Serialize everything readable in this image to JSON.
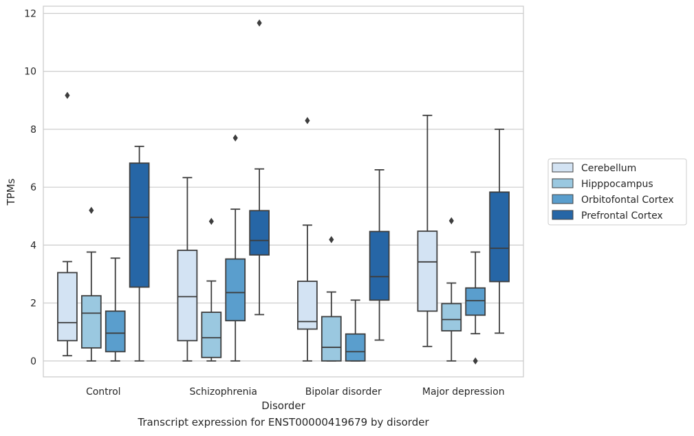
{
  "caption": "Transcript expression for ENST00000419679 by disorder",
  "chart_data": {
    "type": "box",
    "xlabel": "Disorder",
    "ylabel": "TPMs",
    "ylim": [
      -0.55,
      12.25
    ],
    "yticks": [
      0,
      2,
      4,
      6,
      8,
      10,
      12
    ],
    "grid": true,
    "legend_position": "right",
    "categories": [
      "Control",
      "Schizophrenia",
      "Bipolar disorder",
      "Major depression"
    ],
    "series": [
      {
        "name": "Cerebellum",
        "color": "#d3e3f3",
        "boxes": [
          {
            "whislo": 0.18,
            "q1": 0.7,
            "med": 1.32,
            "q3": 3.05,
            "whishi": 3.43,
            "fliers": [
              9.17
            ]
          },
          {
            "whislo": 0.0,
            "q1": 0.7,
            "med": 2.22,
            "q3": 3.82,
            "whishi": 6.33,
            "fliers": []
          },
          {
            "whislo": 0.0,
            "q1": 1.1,
            "med": 1.36,
            "q3": 2.75,
            "whishi": 4.69,
            "fliers": [
              8.3
            ]
          },
          {
            "whislo": 0.5,
            "q1": 1.72,
            "med": 3.42,
            "q3": 4.48,
            "whishi": 8.48,
            "fliers": []
          }
        ]
      },
      {
        "name": "Hipppocampus",
        "color": "#9ac8e0",
        "boxes": [
          {
            "whislo": 0.0,
            "q1": 0.45,
            "med": 1.65,
            "q3": 2.25,
            "whishi": 3.76,
            "fliers": [
              5.2
            ]
          },
          {
            "whislo": 0.0,
            "q1": 0.12,
            "med": 0.8,
            "q3": 1.68,
            "whishi": 2.76,
            "fliers": [
              4.82
            ]
          },
          {
            "whislo": 0.0,
            "q1": 0.0,
            "med": 0.47,
            "q3": 1.53,
            "whishi": 2.38,
            "fliers": [
              4.19
            ]
          },
          {
            "whislo": 0.0,
            "q1": 1.04,
            "med": 1.43,
            "q3": 1.98,
            "whishi": 2.69,
            "fliers": [
              4.84
            ]
          }
        ]
      },
      {
        "name": "Orbitofontal Cortex",
        "color": "#5a9ecd",
        "boxes": [
          {
            "whislo": 0.0,
            "q1": 0.32,
            "med": 0.96,
            "q3": 1.72,
            "whishi": 3.55,
            "fliers": []
          },
          {
            "whislo": 0.0,
            "q1": 1.39,
            "med": 2.36,
            "q3": 3.52,
            "whishi": 5.24,
            "fliers": [
              7.7
            ]
          },
          {
            "whislo": 0.0,
            "q1": 0.0,
            "med": 0.32,
            "q3": 0.93,
            "whishi": 2.1,
            "fliers": []
          },
          {
            "whislo": 0.94,
            "q1": 1.58,
            "med": 2.08,
            "q3": 2.52,
            "whishi": 3.76,
            "fliers": [
              0.0
            ]
          }
        ]
      },
      {
        "name": "Prefrontal Cortex",
        "color": "#2666a6",
        "boxes": [
          {
            "whislo": 0.0,
            "q1": 2.55,
            "med": 4.96,
            "q3": 6.83,
            "whishi": 7.41,
            "fliers": []
          },
          {
            "whislo": 1.6,
            "q1": 3.66,
            "med": 4.16,
            "q3": 5.19,
            "whishi": 6.63,
            "fliers": [
              11.67
            ]
          },
          {
            "whislo": 0.72,
            "q1": 2.1,
            "med": 2.91,
            "q3": 4.47,
            "whishi": 6.6,
            "fliers": []
          },
          {
            "whislo": 0.96,
            "q1": 2.74,
            "med": 3.89,
            "q3": 5.83,
            "whishi": 8.0,
            "fliers": []
          }
        ]
      }
    ]
  }
}
